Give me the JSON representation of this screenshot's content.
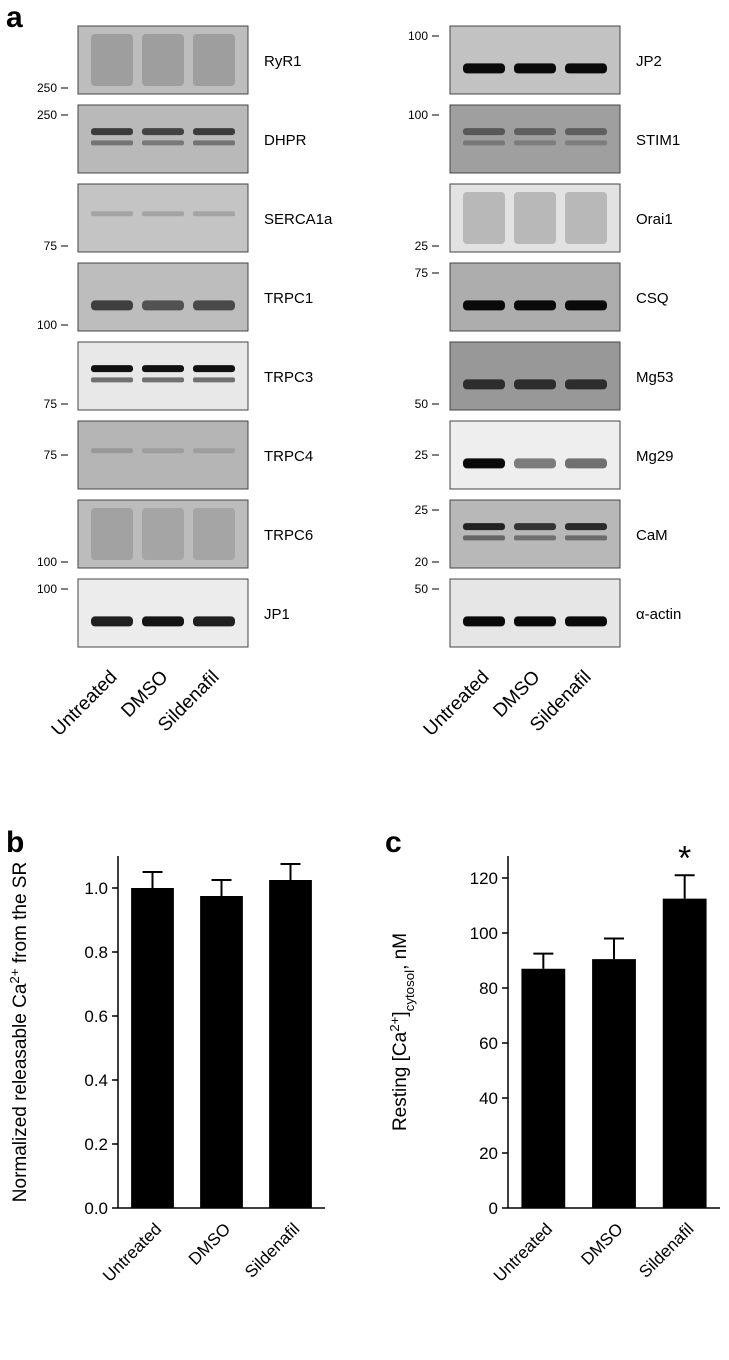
{
  "panel_a": {
    "label": "a",
    "lanes": [
      "Untreated",
      "DMSO",
      "Sildenafil"
    ],
    "left_blots": [
      {
        "name": "RyR1",
        "markers": [
          {
            "label": "250",
            "pos": "bottom"
          }
        ],
        "bg": "#bdbdbd",
        "intensity": [
          0.55,
          0.55,
          0.55
        ],
        "style": "smear"
      },
      {
        "name": "DHPR",
        "markers": [
          {
            "label": "250",
            "pos": "top"
          }
        ],
        "bg": "#b9b9b9",
        "intensity": [
          0.75,
          0.7,
          0.75
        ],
        "style": "double"
      },
      {
        "name": "SERCA1a",
        "markers": [
          {
            "label": "75",
            "pos": "bottom"
          }
        ],
        "bg": "#c4c4c4",
        "intensity": [
          0.25,
          0.25,
          0.25
        ],
        "style": "faint"
      },
      {
        "name": "TRPC1",
        "markers": [
          {
            "label": "100",
            "pos": "bottom"
          }
        ],
        "bg": "#bdbdbd",
        "intensity": [
          0.7,
          0.6,
          0.65
        ],
        "style": "single"
      },
      {
        "name": "TRPC3",
        "markers": [
          {
            "label": "75",
            "pos": "bottom"
          }
        ],
        "bg": "#e8e8e8",
        "intensity": [
          1.0,
          1.0,
          1.0
        ],
        "style": "double"
      },
      {
        "name": "TRPC4",
        "markers": [
          {
            "label": "75",
            "pos": "middle"
          }
        ],
        "bg": "#b5b5b5",
        "intensity": [
          0.25,
          0.2,
          0.2
        ],
        "style": "faint"
      },
      {
        "name": "TRPC6",
        "markers": [
          {
            "label": "100",
            "pos": "bottom"
          }
        ],
        "bg": "#bcbcbc",
        "intensity": [
          0.45,
          0.4,
          0.4
        ],
        "style": "smear"
      },
      {
        "name": "JP1",
        "markers": [
          {
            "label": "100",
            "pos": "top"
          }
        ],
        "bg": "#ececec",
        "intensity": [
          0.9,
          0.95,
          0.9
        ],
        "style": "single"
      }
    ],
    "right_blots": [
      {
        "name": "JP2",
        "markers": [
          {
            "label": "100",
            "pos": "top"
          }
        ],
        "bg": "#c2c2c2",
        "intensity": [
          1.0,
          1.0,
          1.0
        ],
        "style": "single"
      },
      {
        "name": "STIM1",
        "markers": [
          {
            "label": "100",
            "pos": "top"
          }
        ],
        "bg": "#9f9f9f",
        "intensity": [
          0.5,
          0.45,
          0.45
        ],
        "style": "double"
      },
      {
        "name": "Orai1",
        "markers": [
          {
            "label": "25",
            "pos": "bottom"
          }
        ],
        "bg": "#e2e2e2",
        "intensity": [
          0.55,
          0.55,
          0.55
        ],
        "style": "smear"
      },
      {
        "name": "CSQ",
        "markers": [
          {
            "label": "75",
            "pos": "top"
          }
        ],
        "bg": "#adadad",
        "intensity": [
          1.0,
          1.0,
          1.0
        ],
        "style": "single"
      },
      {
        "name": "Mg53",
        "markers": [
          {
            "label": "50",
            "pos": "bottom"
          }
        ],
        "bg": "#989898",
        "intensity": [
          0.75,
          0.75,
          0.75
        ],
        "style": "single"
      },
      {
        "name": "Mg29",
        "markers": [
          {
            "label": "25",
            "pos": "middle"
          }
        ],
        "bg": "#eeeeee",
        "intensity": [
          1.0,
          0.5,
          0.55
        ],
        "style": "single"
      },
      {
        "name": "CaM",
        "markers": [
          {
            "label": "25",
            "pos": "top"
          },
          {
            "label": "20",
            "pos": "bottom"
          }
        ],
        "bg": "#b8b8b8",
        "intensity": [
          0.9,
          0.8,
          0.85
        ],
        "style": "double"
      },
      {
        "name": "α-actin",
        "markers": [
          {
            "label": "50",
            "pos": "top"
          }
        ],
        "bg": "#e6e6e6",
        "intensity": [
          1.0,
          1.0,
          1.0
        ],
        "style": "single"
      }
    ]
  },
  "chart_data": [
    {
      "panel": "b",
      "type": "bar",
      "categories": [
        "Untreated",
        "DMSO",
        "Sildenafil"
      ],
      "values": [
        1.0,
        0.975,
        1.025
      ],
      "errors": [
        0.05,
        0.05,
        0.05
      ],
      "ylabel": "Normalized releasable Ca2+ from the SR",
      "ylim": [
        0,
        1.1
      ],
      "yticks": [
        "0.0",
        "0.2",
        "0.4",
        "0.6",
        "0.8",
        "1.0"
      ],
      "bar_color": "#000000",
      "grid": false
    },
    {
      "panel": "c",
      "type": "bar",
      "categories": [
        "Untreated",
        "DMSO",
        "Sildenafil"
      ],
      "values": [
        87,
        90.5,
        112.5
      ],
      "errors": [
        5.5,
        7.5,
        8.5
      ],
      "ylabel": "Resting [Ca2+]cytosol, nM",
      "ylim": [
        0,
        128
      ],
      "yticks": [
        "0",
        "20",
        "40",
        "60",
        "80",
        "100",
        "120"
      ],
      "significance": [
        "",
        "",
        "*"
      ],
      "bar_color": "#000000",
      "grid": false
    }
  ]
}
